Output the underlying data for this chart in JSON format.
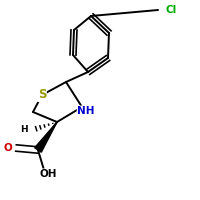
{
  "background_color": "#ffffff",
  "colors": {
    "S": "#999900",
    "N": "#0000cc",
    "Cl": "#00aa00",
    "O": "#cc0000",
    "C": "#000000",
    "H": "#000000"
  },
  "lw": 1.4,
  "fs": 7.5
}
